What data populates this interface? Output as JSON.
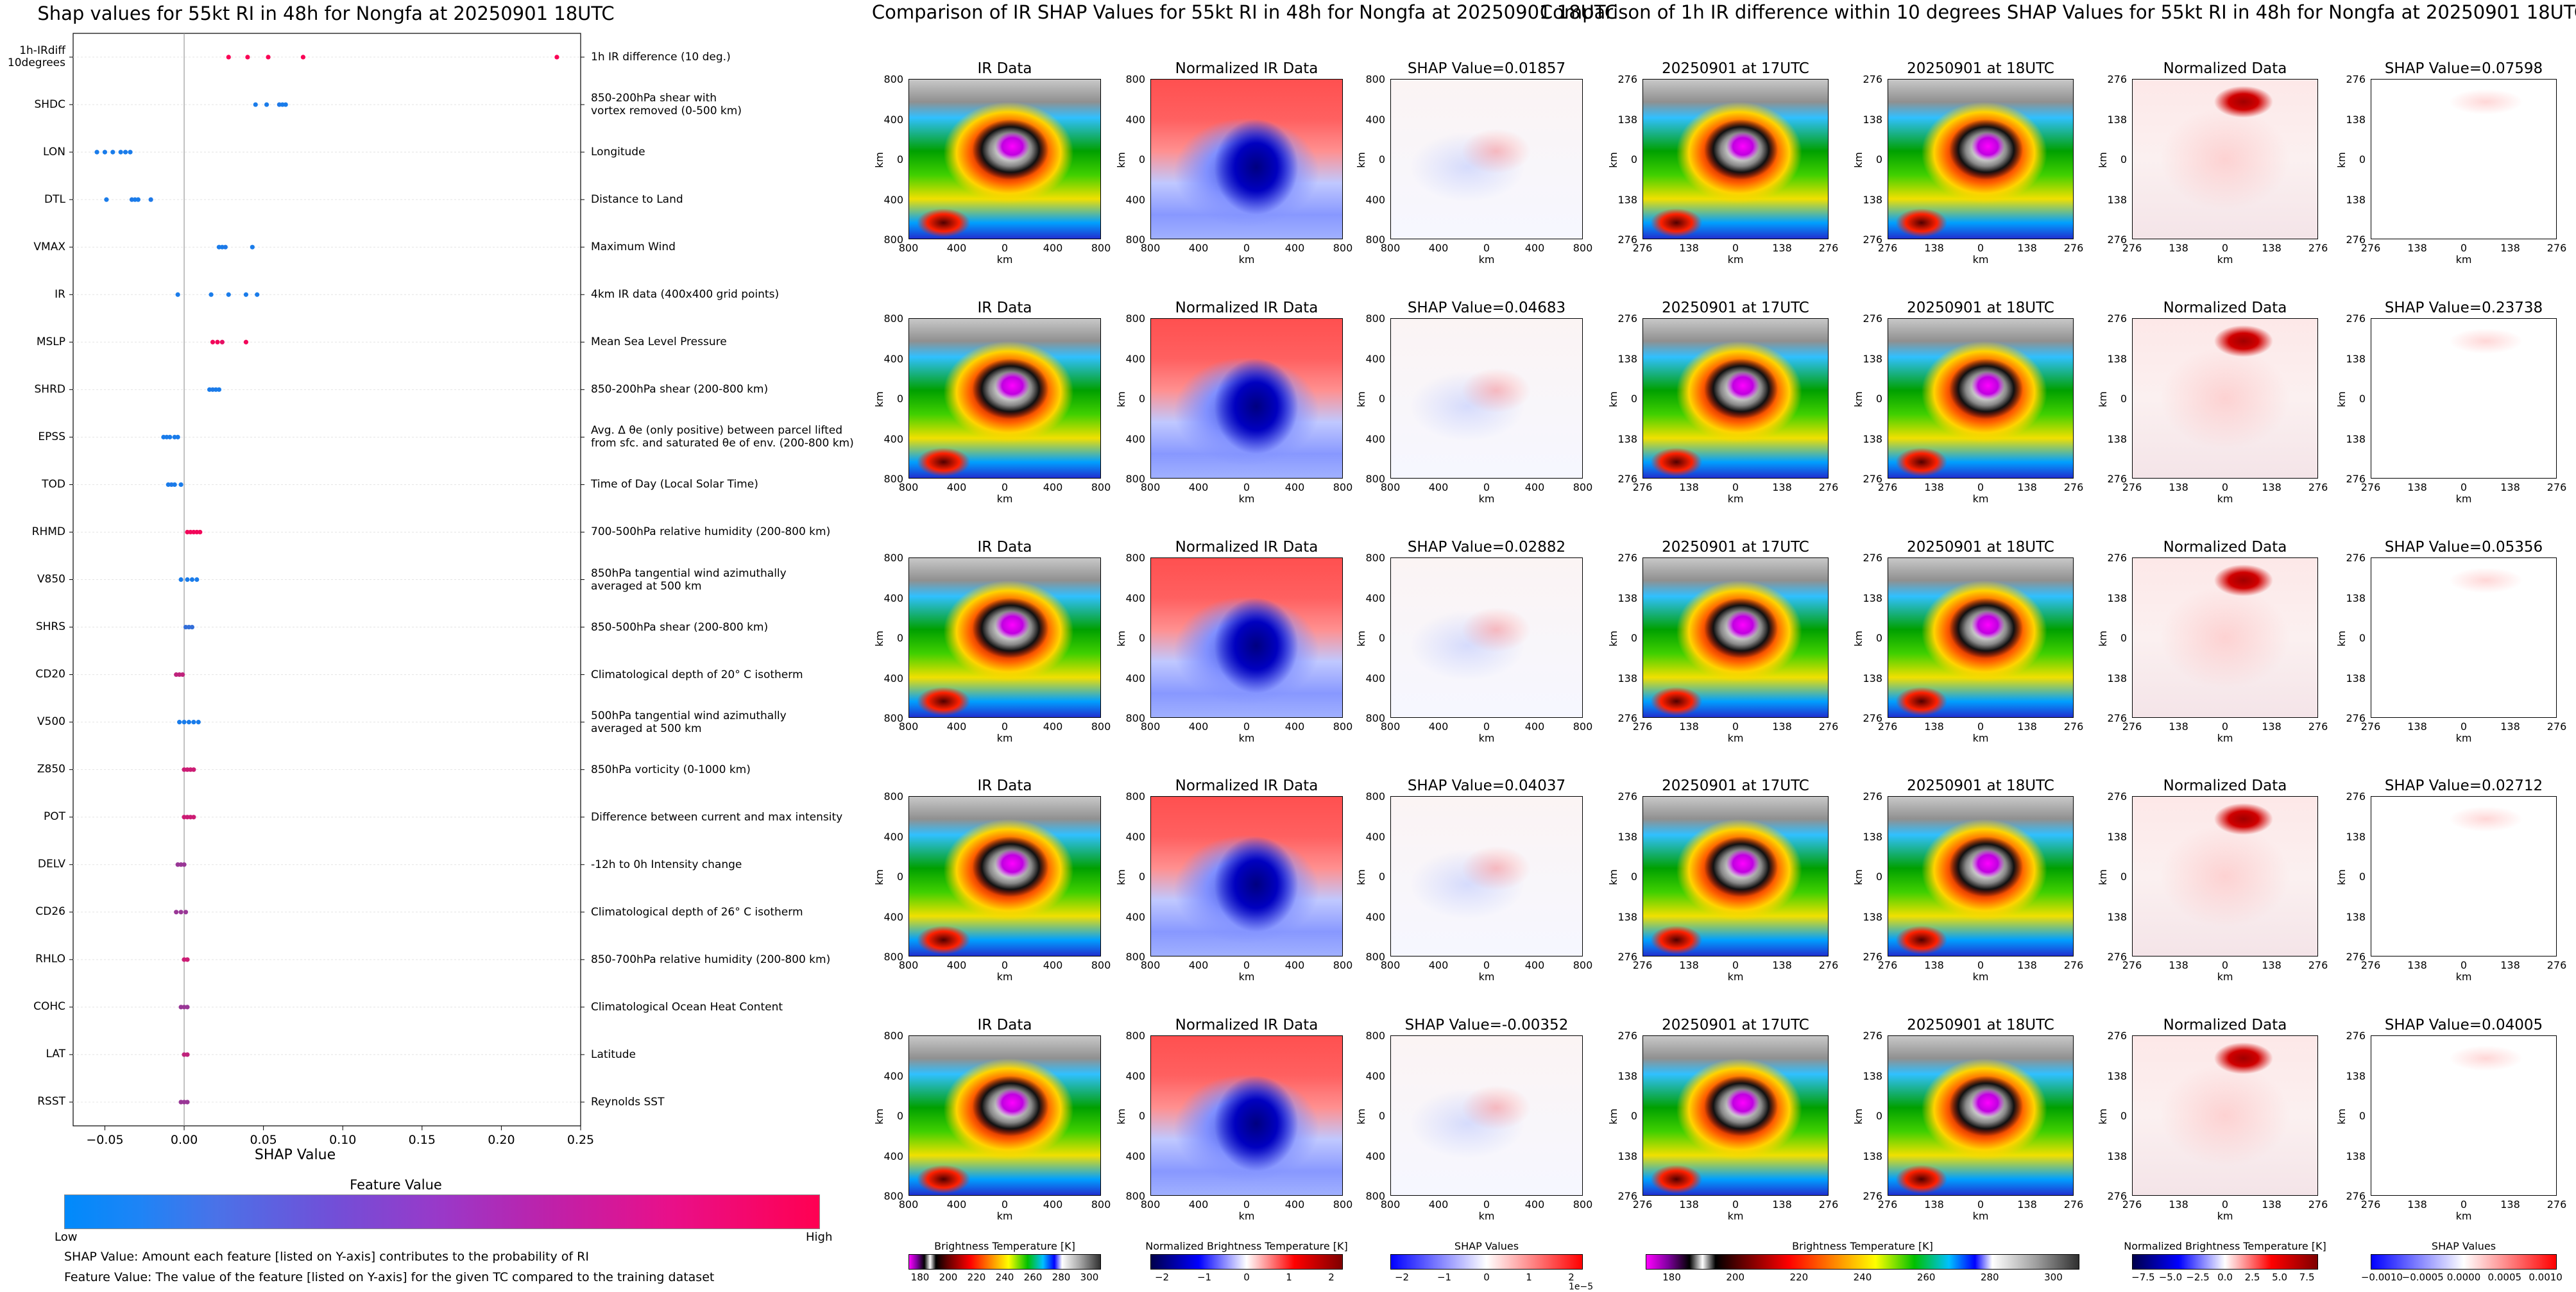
{
  "shap_summary": {
    "title": "Shap values for 55kt RI in 48h for Nongfa at 20250901 18UTC",
    "xlabel": "SHAP Value",
    "colorbar_title": "Feature Value",
    "colorbar_low": "Low",
    "colorbar_high": "High",
    "footnote1": "SHAP Value: Amount each feature [listed on Y-axis] contributes to the probability of RI",
    "footnote2": "Feature Value: The value of the feature [listed on Y-axis] for the given TC compared to the training dataset"
  },
  "ir_figure": {
    "title": "Comparison of IR SHAP Values for 55kt RI in 48h for Nongfa at 20250901 18UTC",
    "col_titles": [
      "IR Data",
      "Normalized IR Data"
    ],
    "shap_titles": [
      "SHAP Value=0.01857",
      "SHAP Value=0.04683",
      "SHAP Value=0.02882",
      "SHAP Value=0.04037",
      "SHAP Value=-0.00352"
    ],
    "ytick_labels": [
      "800",
      "400",
      "0",
      "400",
      "800"
    ],
    "xtick_labels": [
      "800",
      "400",
      "0",
      "400",
      "800"
    ],
    "axis_label": "km",
    "cbar_labels": [
      "Brightness Temperature [K]",
      "Normalized Brightness Temperature [K]",
      "SHAP Values"
    ],
    "cbar1_ticks": [
      "180",
      "200",
      "220",
      "240",
      "260",
      "280",
      "300"
    ],
    "cbar2_ticks": [
      "−2",
      "−1",
      "0",
      "1",
      "2"
    ],
    "cbar3_ticks": [
      "−2",
      "−1",
      "0",
      "1",
      "2"
    ],
    "cbar3_exponent": "1e−5"
  },
  "diff_figure": {
    "title": "Comparison of 1h IR difference within 10 degrees SHAP Values for 55kt RI in 48h for Nongfa at 20250901 18UTC",
    "col_titles": [
      "20250901 at 17UTC",
      "20250901 at 18UTC",
      "Normalized Data"
    ],
    "shap_titles": [
      "SHAP Value=0.07598",
      "SHAP Value=0.23738",
      "SHAP Value=0.05356",
      "SHAP Value=0.02712",
      "SHAP Value=0.04005"
    ],
    "ytick_labels": [
      "276",
      "138",
      "0",
      "138",
      "276"
    ],
    "xtick_labels": [
      "276",
      "138",
      "0",
      "138",
      "276"
    ],
    "axis_label": "km",
    "cbar_labels": [
      "Brightness Temperature [K]",
      "Normalized Brightness Temperature [K]",
      "SHAP Values"
    ],
    "cbar1_ticks": [
      "180",
      "200",
      "220",
      "240",
      "260",
      "280",
      "300"
    ],
    "cbar2_ticks": [
      "−7.5",
      "−5.0",
      "−2.5",
      "0.0",
      "2.5",
      "5.0",
      "7.5"
    ],
    "cbar3_ticks": [
      "−0.0010",
      "−0.0005",
      "0.0000",
      "0.0005",
      "0.0010"
    ]
  },
  "chart_data": {
    "type": "scatter",
    "title": "Shap values for 55kt RI in 48h for Nongfa at 20250901 18UTC",
    "xlabel": "SHAP Value",
    "xlim": [
      -0.07,
      0.25
    ],
    "xticks": [
      "−0.05",
      "0.00",
      "0.05",
      "0.10",
      "0.15",
      "0.20",
      "0.25"
    ],
    "xtick_values": [
      -0.05,
      0.0,
      0.05,
      0.1,
      0.15,
      0.2,
      0.25
    ],
    "features": [
      {
        "name": "1h-IRdiff\n10degrees",
        "desc": "1h IR difference (10 deg.)",
        "points": [
          0.028,
          0.04,
          0.053,
          0.075,
          0.235
        ],
        "fv": [
          0.98,
          0.98,
          0.98,
          0.98,
          0.98
        ]
      },
      {
        "name": "SHDC",
        "desc": "850-200hPa shear with\nvortex removed (0-500 km)",
        "points": [
          0.045,
          0.052,
          0.06,
          0.062,
          0.064
        ],
        "fv": [
          0.1,
          0.1,
          0.12,
          0.1,
          0.1
        ]
      },
      {
        "name": "LON",
        "desc": "Longitude",
        "points": [
          -0.055,
          -0.05,
          -0.045,
          -0.04,
          -0.037,
          -0.034
        ],
        "fv": [
          0.1,
          0.1,
          0.1,
          0.1,
          0.1,
          0.1
        ]
      },
      {
        "name": "DTL",
        "desc": "Distance to Land",
        "points": [
          -0.049,
          -0.033,
          -0.031,
          -0.029,
          -0.021
        ],
        "fv": [
          0.1,
          0.12,
          0.1,
          0.1,
          0.12
        ]
      },
      {
        "name": "VMAX",
        "desc": "Maximum Wind",
        "points": [
          0.022,
          0.024,
          0.026,
          0.043
        ],
        "fv": [
          0.1,
          0.1,
          0.12,
          0.1
        ]
      },
      {
        "name": "IR",
        "desc": "4km IR data (400x400 grid points)",
        "points": [
          -0.004,
          0.017,
          0.028,
          0.039,
          0.046
        ],
        "fv": [
          0.1,
          0.1,
          0.1,
          0.1,
          0.1
        ]
      },
      {
        "name": "MSLP",
        "desc": "Mean Sea Level Pressure",
        "points": [
          0.018,
          0.021,
          0.024,
          0.039
        ],
        "fv": [
          0.95,
          0.95,
          0.9,
          0.95
        ]
      },
      {
        "name": "SHRD",
        "desc": "850-200hPa shear (200-800 km)",
        "points": [
          0.016,
          0.018,
          0.02,
          0.022
        ],
        "fv": [
          0.1,
          0.12,
          0.1,
          0.1
        ]
      },
      {
        "name": "EPSS",
        "desc": "Avg. Δ θe (only positive) between parcel lifted\nfrom sfc. and saturated θe of env. (200-800 km)",
        "points": [
          -0.013,
          -0.011,
          -0.009,
          -0.006,
          -0.004
        ],
        "fv": [
          0.1,
          0.1,
          0.1,
          0.1,
          0.1
        ]
      },
      {
        "name": "TOD",
        "desc": "Time of Day (Local Solar Time)",
        "points": [
          -0.01,
          -0.008,
          -0.006,
          -0.002
        ],
        "fv": [
          0.1,
          0.12,
          0.1,
          0.1
        ]
      },
      {
        "name": "RHMD",
        "desc": "700-500hPa relative humidity (200-800 km)",
        "points": [
          0.002,
          0.004,
          0.006,
          0.008,
          0.01
        ],
        "fv": [
          0.95,
          0.95,
          0.95,
          0.95,
          0.95
        ]
      },
      {
        "name": "V850",
        "desc": "850hPa tangential wind azimuthally\naveraged at 500 km",
        "points": [
          -0.002,
          0.002,
          0.005,
          0.008
        ],
        "fv": [
          0.1,
          0.1,
          0.1,
          0.1
        ]
      },
      {
        "name": "SHRS",
        "desc": "850-500hPa shear (200-800 km)",
        "points": [
          0.001,
          0.003,
          0.005
        ],
        "fv": [
          0.2,
          0.2,
          0.2
        ]
      },
      {
        "name": "CD20",
        "desc": "Climatological depth of 20° C isotherm",
        "points": [
          -0.005,
          -0.003,
          -0.001
        ],
        "fv": [
          0.75,
          0.75,
          0.75
        ]
      },
      {
        "name": "V500",
        "desc": "500hPa tangential wind azimuthally\naveraged at 500 km",
        "points": [
          -0.003,
          0.0,
          0.003,
          0.006,
          0.009
        ],
        "fv": [
          0.1,
          0.1,
          0.1,
          0.1,
          0.1
        ]
      },
      {
        "name": "Z850",
        "desc": "850hPa vorticity (0-1000 km)",
        "points": [
          0.0,
          0.002,
          0.004,
          0.006
        ],
        "fv": [
          0.8,
          0.8,
          0.8,
          0.8
        ]
      },
      {
        "name": "POT",
        "desc": "Difference between current and max intensity",
        "points": [
          0.0,
          0.002,
          0.004,
          0.006
        ],
        "fv": [
          0.8,
          0.8,
          0.8,
          0.8
        ]
      },
      {
        "name": "DELV",
        "desc": "-12h to 0h Intensity change",
        "points": [
          -0.004,
          -0.002,
          0.0
        ],
        "fv": [
          0.6,
          0.6,
          0.6
        ]
      },
      {
        "name": "CD26",
        "desc": "Climatological depth of 26° C isotherm",
        "points": [
          -0.005,
          -0.002,
          0.001
        ],
        "fv": [
          0.6,
          0.6,
          0.6
        ]
      },
      {
        "name": "RHLO",
        "desc": "850-700hPa relative humidity (200-800 km)",
        "points": [
          0.0,
          0.002
        ],
        "fv": [
          0.8,
          0.8
        ]
      },
      {
        "name": "COHC",
        "desc": "Climatological Ocean Heat Content",
        "points": [
          -0.002,
          0.0,
          0.002
        ],
        "fv": [
          0.6,
          0.6,
          0.6
        ]
      },
      {
        "name": "LAT",
        "desc": "Latitude",
        "points": [
          0.0,
          0.002
        ],
        "fv": [
          0.75,
          0.75
        ]
      },
      {
        "name": "RSST",
        "desc": "Reynolds SST",
        "points": [
          -0.002,
          0.0,
          0.002
        ],
        "fv": [
          0.6,
          0.6,
          0.6
        ]
      }
    ]
  }
}
